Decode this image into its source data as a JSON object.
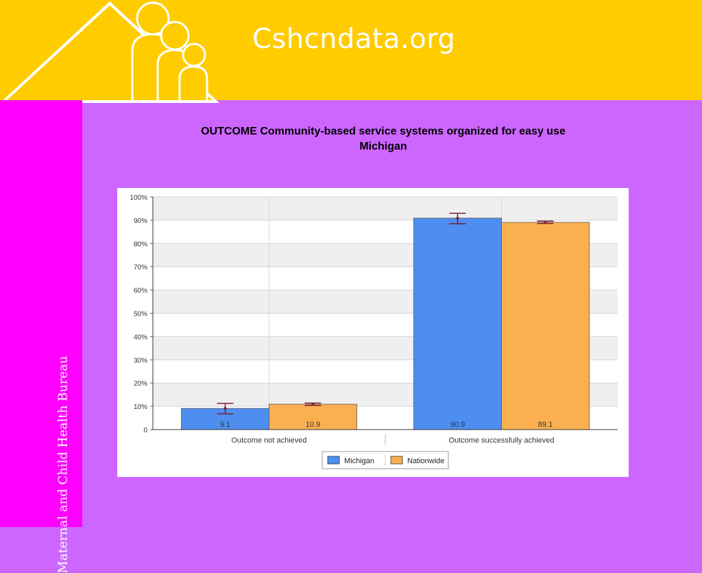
{
  "header": {
    "site_title": "Cshcndata.org",
    "logo_icon": "family-house-logo-icon",
    "background_color": "#ffcc00"
  },
  "sidebar": {
    "org_name": "Maternal and Child Health Bureau",
    "background_color": "#ff00ff"
  },
  "page": {
    "background_color": "#cc66ff",
    "chart_title_line1": "OUTCOME  Community-based service systems organized for easy use",
    "chart_title_line2": "Michigan"
  },
  "chart_data": {
    "type": "bar",
    "title": "OUTCOME  Community-based service systems organized for easy use",
    "subtitle": "Michigan",
    "categories": [
      "Outcome not achieved",
      "Outcome successfully achieved"
    ],
    "series": [
      {
        "name": "Michigan",
        "values": [
          9.1,
          90.9
        ],
        "error_low": [
          6.8,
          88.5
        ],
        "error_high": [
          11.3,
          93.0
        ],
        "value_labels": [
          "9.1",
          "90.9"
        ],
        "color": "#4d8ef0"
      },
      {
        "name": "Nationwide",
        "values": [
          10.9,
          89.1
        ],
        "error_low": [
          10.4,
          88.6
        ],
        "error_high": [
          11.4,
          89.6
        ],
        "value_labels": [
          "10.9",
          "89.1"
        ],
        "color": "#fbb04f"
      }
    ],
    "ylim": [
      0,
      100
    ],
    "y_ticks": [
      0,
      10,
      20,
      30,
      40,
      50,
      60,
      70,
      80,
      90,
      100
    ],
    "y_tick_labels": [
      "0",
      "10%",
      "20%",
      "30%",
      "40%",
      "50%",
      "60%",
      "70%",
      "80%",
      "90%",
      "100%"
    ],
    "xlabel": "",
    "ylabel": "",
    "grid": true,
    "legend_position": "bottom-center",
    "error_bar_color": "#7a1f2e"
  }
}
